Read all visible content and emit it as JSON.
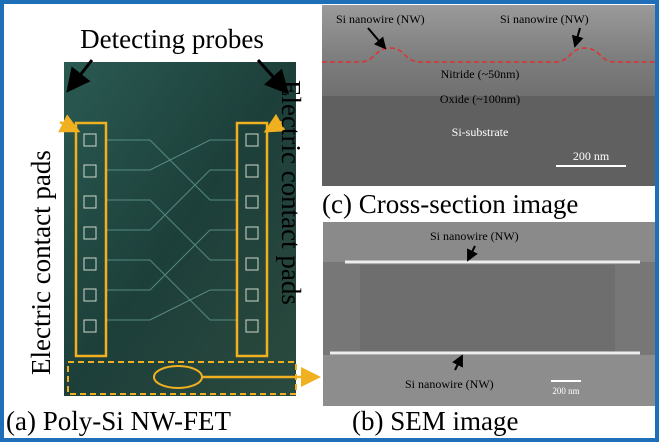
{
  "panel_a": {
    "probes_label": "Detecting probes",
    "left_pads_label": "Electric contact pads",
    "right_pads_label": "Electric contact pads",
    "caption": "(a) Poly-Si NW-FET"
  },
  "panel_b": {
    "nanowire_top": "Si nanowire (NW)",
    "nanowire_bottom": "Si nanowire (NW)",
    "scale_bar": "200 nm",
    "caption": "(b) SEM image"
  },
  "panel_c": {
    "nanowire_left": "Si nanowire (NW)",
    "nanowire_right": "Si nanowire (NW)",
    "nitride": "Nitride (~50nm)",
    "oxide": "Oxide (~100nm)",
    "substrate": "Si-substrate",
    "scale_bar": "200 nm",
    "caption": "(c) Cross-section image"
  }
}
